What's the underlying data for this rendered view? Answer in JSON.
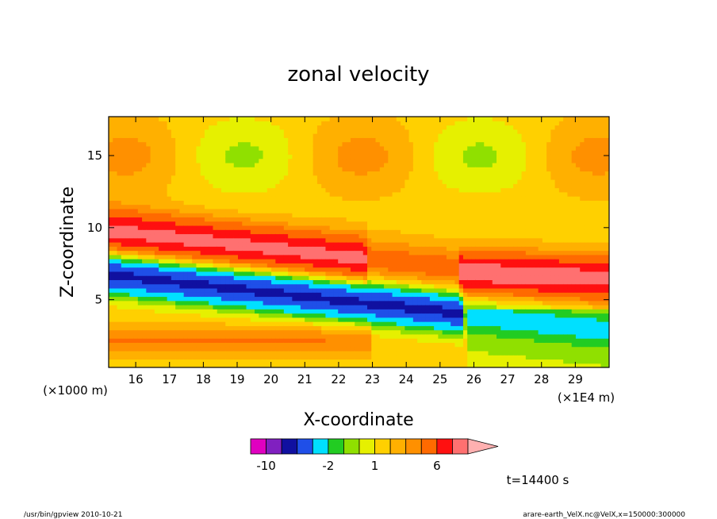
{
  "chart_data": {
    "type": "heatmap",
    "title": "zonal velocity",
    "xlabel": "X-coordinate",
    "ylabel": "Z-coordinate",
    "x_unit_left": "(×1000 m)",
    "x_unit_right": "(×1E4 m)",
    "xlim": [
      15.2,
      30.0
    ],
    "ylim": [
      0.3,
      17.7
    ],
    "x_ticks": [
      "16",
      "17",
      "18",
      "19",
      "20",
      "21",
      "22",
      "23",
      "24",
      "25",
      "26",
      "27",
      "28",
      "29"
    ],
    "y_ticks": [
      "5",
      "10",
      "15"
    ],
    "contour_levels": [
      -12,
      -10,
      -8,
      -6,
      -4,
      -2,
      -1,
      0,
      1,
      2,
      3,
      4,
      6,
      8,
      10,
      12
    ],
    "colorbar_labels": [
      "-10",
      "-2",
      "1",
      "6"
    ],
    "colorbar_label_values": [
      -10,
      -2,
      1,
      6
    ],
    "colors": [
      "#e000c0",
      "#8020c0",
      "#1010a0",
      "#1f4fe8",
      "#00e0ff",
      "#22cc22",
      "#90e000",
      "#e6f000",
      "#ffd000",
      "#ffb000",
      "#ff9000",
      "#ff6a00",
      "#ff1010",
      "#ff7070",
      "#ffb0b0"
    ],
    "time_label": "t=14400 s"
  },
  "footer": {
    "left": "/usr/bin/gpview  2010-10-21",
    "right": "arare-earth_VelX.nc@VelX,x=150000:300000"
  }
}
